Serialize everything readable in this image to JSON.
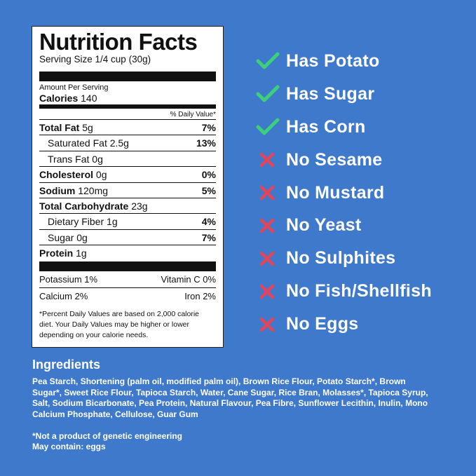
{
  "nutrition_facts": {
    "title": "Nutrition Facts",
    "serving_size": "Serving Size 1/4 cup (30g)",
    "amount_per_serving": "Amount Per Serving",
    "calories": {
      "label": "Calories",
      "amount": "140"
    },
    "daily_value_header": "% Daily Value*",
    "rows": [
      {
        "label": "Total Fat",
        "amount": "5g",
        "dv": "7%"
      },
      {
        "label": "Saturated Fat",
        "amount": "2.5g",
        "dv": "13%"
      },
      {
        "label": "Trans Fat",
        "amount": "0g"
      },
      {
        "label": "Cholesterol",
        "amount": "0g",
        "dv": "0%"
      },
      {
        "label": "Sodium",
        "amount": "120mg",
        "dv": "5%"
      },
      {
        "label": "Total Carbohydrate",
        "amount": "23g"
      },
      {
        "label": "Dietary Fiber",
        "amount": "1g",
        "dv": "4%"
      },
      {
        "label": "Sugar",
        "amount": "0g",
        "dv": "7%"
      },
      {
        "label": "Protein",
        "amount": "1g"
      }
    ],
    "minerals": [
      [
        "Potassium 1%",
        "Vitamin C 0%"
      ],
      [
        "Calcium 2%",
        "Iron 2%"
      ]
    ],
    "footnote": "*Percent Daily Values are based on 2,000 calorie diet. Your Daily Values may be higher or lower depending on your calorie needs."
  },
  "checklist": [
    "Has Potato",
    "Has Sugar",
    "Has Corn",
    "No Sesame",
    "No Mustard",
    "No Yeast",
    "No Sulphites",
    "No Fish/Shellfish",
    "No Eggs"
  ],
  "ingredients": {
    "title": "Ingredients",
    "text": "Pea Starch, Shortening (palm oil, modified palm oil), Brown Rice Flour, Potato Starch*, Brown Sugar*, Sweet Rice Flour, Tapioca Starch, Water, Cane Sugar, Rice Bran, Molasses*, Tapioca Syrup, Salt, Sodium Bicarbonate, Pea Protein, Natural Flavour, Pea Fibre, Sunflower Lecithin, Inulin, Mono Calcium Phosphate, Cellulose, Guar Gum",
    "notes": [
      "*Not a product of genetic engineering",
      "May contain: eggs"
    ]
  }
}
